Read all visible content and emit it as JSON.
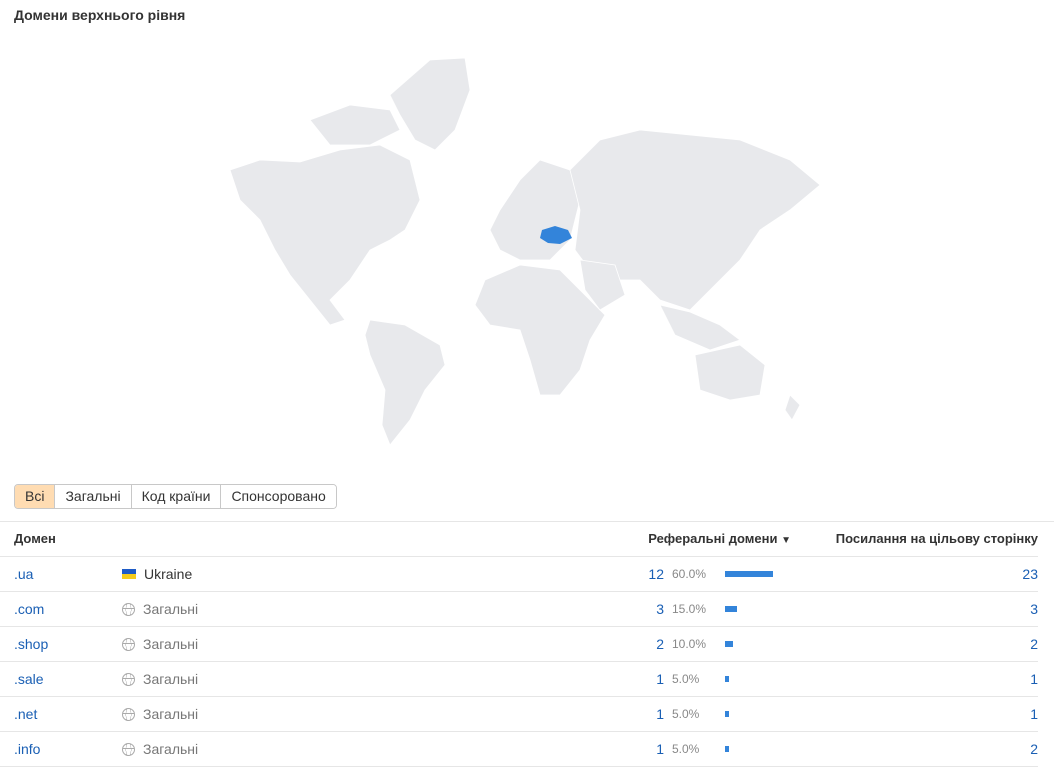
{
  "title": "Домени верхнього рівня",
  "map": {
    "land_color": "#e8e9ec",
    "highlight_color": "#3384da",
    "highlighted": "Ukraine"
  },
  "tabs": [
    {
      "label": "Всі",
      "active": true
    },
    {
      "label": "Загальні"
    },
    {
      "label": "Код країни"
    },
    {
      "label": "Спонсоровано"
    }
  ],
  "table": {
    "headers": {
      "domain": "Домен",
      "ref": "Реферальні домени",
      "links": "Посилання на цільову сторінку"
    },
    "sort_icon": "caret-down-icon",
    "rows": [
      {
        "domain": ".ua",
        "type": "Ukraine",
        "icon": "ukraine-flag-icon",
        "ref": "12",
        "pct": "60.0%",
        "share": 60,
        "links": "23"
      },
      {
        "domain": ".com",
        "type": "Загальні",
        "icon": "globe-icon",
        "ref": "3",
        "pct": "15.0%",
        "share": 15,
        "links": "3"
      },
      {
        "domain": ".shop",
        "type": "Загальні",
        "icon": "globe-icon",
        "ref": "2",
        "pct": "10.0%",
        "share": 10,
        "links": "2"
      },
      {
        "domain": ".sale",
        "type": "Загальні",
        "icon": "globe-icon",
        "ref": "1",
        "pct": "5.0%",
        "share": 5,
        "links": "1"
      },
      {
        "domain": ".net",
        "type": "Загальні",
        "icon": "globe-icon",
        "ref": "1",
        "pct": "5.0%",
        "share": 5,
        "links": "1"
      },
      {
        "domain": ".info",
        "type": "Загальні",
        "icon": "globe-icon",
        "ref": "1",
        "pct": "5.0%",
        "share": 5,
        "links": "2"
      }
    ]
  }
}
